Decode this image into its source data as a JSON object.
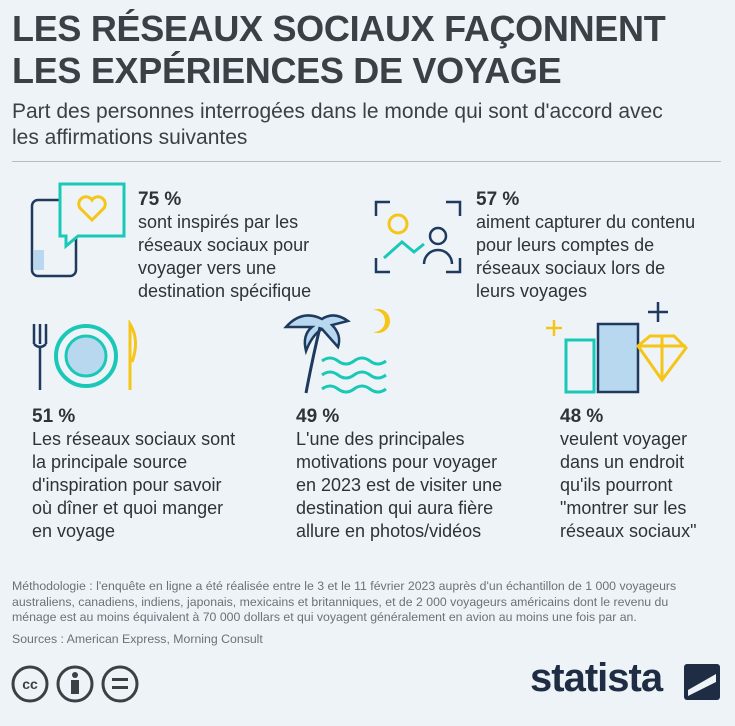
{
  "header": {
    "title": [
      "LES RÉSEAUX SOCIAUX FAÇONNENT",
      "LES EXPÉRIENCES DE VOYAGE"
    ],
    "subtitle": [
      "Part des personnes interrogées dans le monde qui sont d'accord avec",
      "les affirmations suivantes"
    ]
  },
  "items": [
    {
      "pct": "75 %",
      "lines": [
        "sont inspirés par les",
        "réseaux sociaux pour",
        "voyager vers une",
        "destination spécifique"
      ]
    },
    {
      "pct": "57 %",
      "lines": [
        "aiment capturer du contenu",
        "pour leurs comptes de",
        "réseaux sociaux lors de",
        "leurs voyages"
      ]
    },
    {
      "pct": "51 %",
      "lines": [
        "Les réseaux sociaux sont",
        "la principale source",
        "d'inspiration pour savoir",
        "où dîner et quoi manger",
        "en voyage"
      ]
    },
    {
      "pct": "49 %",
      "lines": [
        "L'une des principales",
        "motivations pour voyager",
        "en 2023 est de visiter une",
        "destination qui aura fière",
        "allure en photos/vidéos"
      ]
    },
    {
      "pct": "48 %",
      "lines": [
        "veulent voyager",
        "dans un endroit",
        "qu'ils pourront",
        "\"montrer sur les",
        "réseaux sociaux\""
      ]
    }
  ],
  "footer": {
    "methodology": [
      "Méthodologie : l'enquête en ligne a été réalisée entre le 3 et le 11 février 2023 auprès d'un échantillon de 1 000 voyageurs",
      "australiens, canadiens, indiens, japonais, mexicains et britanniques, et de 2 000 voyageurs américains dont le revenu du",
      "ménage est au moins équivalent à 70 000 dollars et qui voyagent généralement en avion au moins une fois par an."
    ],
    "sources": "Sources : American Express, Morning Consult",
    "brand": "statista"
  }
}
